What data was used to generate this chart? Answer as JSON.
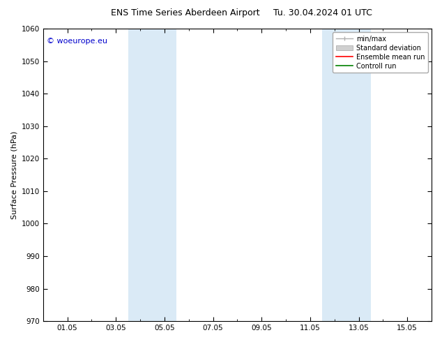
{
  "title": "ENS Time Series Aberdeen Airport",
  "title_date": "Tu. 30.04.2024 01 UTC",
  "ylabel": "Surface Pressure (hPa)",
  "ylim": [
    970,
    1060
  ],
  "yticks": [
    970,
    980,
    990,
    1000,
    1010,
    1020,
    1030,
    1040,
    1050,
    1060
  ],
  "xtick_labels": [
    "01.05",
    "03.05",
    "05.05",
    "07.05",
    "09.05",
    "11.05",
    "13.05",
    "15.05"
  ],
  "xtick_positions": [
    1,
    3,
    5,
    7,
    9,
    11,
    13,
    15
  ],
  "xlim": [
    0,
    16
  ],
  "shaded_regions": [
    {
      "xmin": 3.5,
      "xmax": 4.5
    },
    {
      "xmin": 4.5,
      "xmax": 5.5
    },
    {
      "xmin": 11.5,
      "xmax": 12.5
    },
    {
      "xmin": 12.5,
      "xmax": 13.5
    }
  ],
  "shaded_color": "#daeaf6",
  "background_color": "#ffffff",
  "watermark_text": "© woeurope.eu",
  "watermark_color": "#0000cc",
  "legend_items": [
    {
      "label": "min/max",
      "color": "#b0b0b0",
      "style": "line"
    },
    {
      "label": "Standard deviation",
      "color": "#c8c8c8",
      "style": "band"
    },
    {
      "label": "Ensemble mean run",
      "color": "#ff0000",
      "style": "line"
    },
    {
      "label": "Controll run",
      "color": "#008000",
      "style": "line"
    }
  ],
  "title_fontsize": 9,
  "axis_fontsize": 8,
  "tick_fontsize": 7.5,
  "legend_fontsize": 7,
  "watermark_fontsize": 8
}
